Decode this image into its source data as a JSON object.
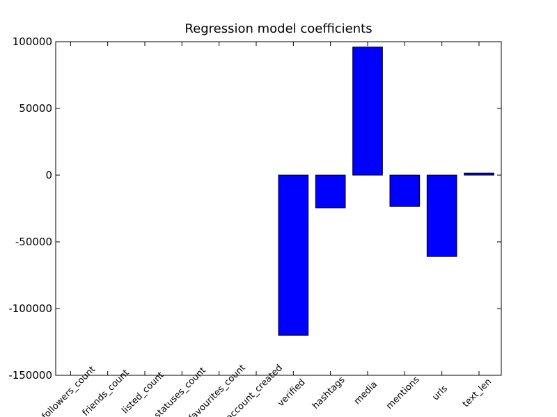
{
  "chart_data": {
    "type": "bar",
    "title": "Regression model coefficients",
    "categories": [
      "followers_count",
      "friends_count",
      "listed_count",
      "statuses_count",
      "favourites_count",
      "account_created",
      "verified",
      "hashtags",
      "media",
      "mentions",
      "urls",
      "text_len"
    ],
    "values": [
      0,
      0,
      0,
      0,
      0,
      0,
      -120000,
      -24500,
      96000,
      -23500,
      -61000,
      1500
    ],
    "color": "#0000ff",
    "ylim": [
      -150000,
      100000
    ],
    "yticks": [
      -150000,
      -100000,
      -50000,
      0,
      50000,
      100000
    ]
  }
}
